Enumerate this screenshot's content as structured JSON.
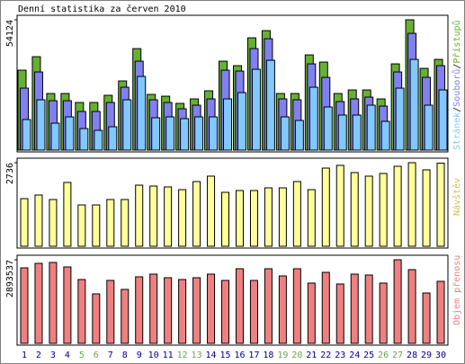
{
  "chart_data": {
    "type": "bar",
    "title": "Denní statistika za červen 2010",
    "categories": [
      "1",
      "2",
      "3",
      "4",
      "5",
      "6",
      "7",
      "8",
      "9",
      "10",
      "11",
      "12",
      "13",
      "14",
      "15",
      "16",
      "17",
      "18",
      "19",
      "20",
      "21",
      "22",
      "23",
      "24",
      "25",
      "26",
      "27",
      "28",
      "29",
      "30"
    ],
    "category_colors": [
      "#00008b",
      "#00008b",
      "#00008b",
      "#00008b",
      "#6aa84f",
      "#6aa84f",
      "#00008b",
      "#00008b",
      "#00008b",
      "#00008b",
      "#00008b",
      "#6aa84f",
      "#6aa84f",
      "#00008b",
      "#00008b",
      "#00008b",
      "#00008b",
      "#00008b",
      "#6aa84f",
      "#6aa84f",
      "#00008b",
      "#00008b",
      "#00008b",
      "#00008b",
      "#00008b",
      "#6aa84f",
      "#6aa84f",
      "#00008b",
      "#00008b",
      "#00008b"
    ],
    "legend_separator": "/",
    "panels": [
      {
        "ylim": [
          0,
          54124
        ],
        "yticks": [
          54124
        ],
        "series": [
          {
            "name": "Přístupů",
            "color": "#66b032",
            "values": [
              33200,
              38792,
              23499,
              23499,
              19769,
              19769,
              22753,
              28721,
              42149,
              23126,
              22380,
              19396,
              21261,
              24618,
              36927,
              35062,
              46625,
              49609,
              23499,
              23499,
              39538,
              36554,
              23499,
              24991,
              24991,
              21261,
              35808,
              54124,
              33943,
              37673
            ]
          },
          {
            "name": "Souborů",
            "color": "#8080f0",
            "values": [
              25737,
              32451,
              20515,
              20515,
              16039,
              16039,
              19769,
              26110,
              36927,
              20888,
              19769,
              17158,
              18650,
              21261,
              33197,
              32824,
              42149,
              46252,
              21261,
              20888,
              35808,
              30213,
              20142,
              21261,
              22007,
              18277,
              32451,
              48490,
              30213,
              35062
            ]
          },
          {
            "name": "Stránek",
            "color": "#80c8ff",
            "values": [
              12682,
              20888,
              11190,
              13801,
              8952,
              8206,
              9698,
              20888,
              30586,
              13428,
              13801,
              13055,
              13801,
              13801,
              21261,
              23872,
              33570,
              37300,
              13801,
              12309,
              26110,
              17904,
              14547,
              14547,
              18650,
              11936,
              25737,
              37673,
              18650,
              24991
            ]
          }
        ]
      },
      {
        "ylim": [
          0,
          2736
        ],
        "yticks": [
          2736
        ],
        "series": [
          {
            "name": "Návštěv",
            "color": "#ffff99",
            "label_color": "#c8c060",
            "values": [
              1559,
              1677,
              1530,
              2089,
              1353,
              1353,
              1530,
              1530,
              2000,
              1971,
              1942,
              1853,
              2118,
              2295,
              1765,
              1824,
              1824,
              1912,
              1912,
              2118,
              1853,
              2559,
              2648,
              2412,
              2295,
              2383,
              2618,
              2736,
              2501,
              2720
            ]
          }
        ]
      },
      {
        "ylim": [
          0,
          2893537
        ],
        "yticks": [
          2893537
        ],
        "series": [
          {
            "name": "Objem přenosu",
            "color": "#f08080",
            "label_color": "#f08080",
            "values": [
              2613492,
              2769057,
              2800170,
              2644605,
              2209023,
              1711215,
              2177910,
              1866780,
              2302362,
              2395701,
              2271249,
              2209023,
              2271249,
              2395701,
              2177910,
              2582379,
              2177910,
              2582379,
              2333475,
              2582379,
              2084571,
              2457927,
              2053458,
              2395701,
              2364588,
              2084571,
              2893537,
              2551266,
              1742328,
              2146797
            ]
          }
        ]
      }
    ]
  }
}
